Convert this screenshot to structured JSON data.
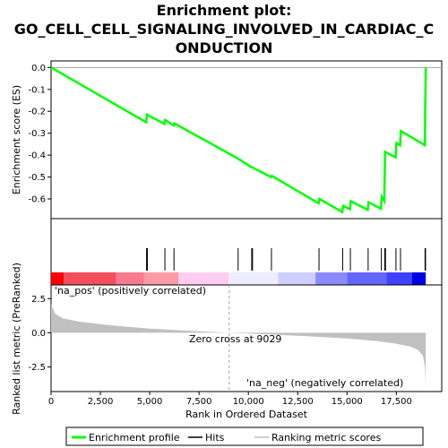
{
  "chart_data": {
    "type": "line",
    "title_lines": [
      "Enrichment plot:",
      "GO_CELL_CELL_SIGNALING_INVOLVED_IN_CARDIAC_C",
      "ONDUCTION"
    ],
    "panels": {
      "enrichment": {
        "ylabel": "Enrichment score (ES)",
        "ylim": [
          -0.69,
          0.03
        ],
        "yticks": [
          0.0,
          -0.1,
          -0.2,
          -0.3,
          -0.4,
          -0.5,
          -0.6
        ],
        "ytick_labels": [
          "0.0",
          "-0.1",
          "-0.2",
          "-0.3",
          "-0.4",
          "-0.5",
          "-0.6"
        ],
        "series": [
          {
            "name": "Enrichment profile",
            "color": "#00ff00",
            "x": [
              0,
              4820,
              4860,
              5750,
              5790,
              6210,
              6250,
              9460,
              10150,
              10190,
              11150,
              11190,
              13560,
              13600,
              14760,
              14800,
              15150,
              15190,
              16050,
              16090,
              16720,
              16760,
              16890,
              16930,
              17460,
              17500,
              17690,
              17730,
              18950,
              18960,
              18990
            ],
            "y": [
              0.0,
              -0.25,
              -0.215,
              -0.258,
              -0.24,
              -0.265,
              -0.255,
              -0.415,
              -0.455,
              -0.455,
              -0.5,
              -0.495,
              -0.62,
              -0.6,
              -0.66,
              -0.632,
              -0.647,
              -0.61,
              -0.65,
              -0.615,
              -0.645,
              -0.59,
              -0.61,
              -0.385,
              -0.41,
              -0.345,
              -0.355,
              -0.29,
              -0.355,
              -0.2,
              0.0
            ]
          }
        ]
      },
      "hits": {
        "name": "Hits",
        "positions": [
          4840,
          4880,
          5770,
          6230,
          9480,
          10170,
          10210,
          11170,
          13580,
          14780,
          15170,
          16070,
          16740,
          16910,
          16950,
          17480,
          17710,
          18955,
          18980
        ]
      },
      "ranked_metric": {
        "name": "Ranking metric scores",
        "ylabel": "Ranked list metric (PreRanked)",
        "ylim": [
          -4.3,
          3.5
        ],
        "yticks": [
          2.5,
          0.0,
          -2.5
        ],
        "ytick_labels": [
          "2.5",
          "0.0",
          "-2.5"
        ],
        "x": [
          0,
          200,
          600,
          1500,
          3000,
          5000,
          7000,
          9029,
          11000,
          13000,
          15000,
          16500,
          17500,
          18200,
          18600,
          18850,
          18950,
          18990
        ],
        "y": [
          2.1,
          1.4,
          1.05,
          0.8,
          0.55,
          0.3,
          0.15,
          0.0,
          -0.12,
          -0.25,
          -0.42,
          -0.6,
          -0.8,
          -1.0,
          -1.25,
          -1.7,
          -2.5,
          -3.9
        ],
        "pos_label": "'na_pos' (positively correlated)",
        "neg_label": "'na_neg' (negatively correlated)",
        "zero_cross_label": "Zero cross at 9029",
        "zero_cross": 9029
      }
    },
    "xlabel": "Rank in Ordered Dataset",
    "xlim": [
      0,
      19800
    ],
    "xticks": [
      0,
      2500,
      5000,
      7500,
      10000,
      12500,
      15000,
      17500
    ],
    "xtick_labels": [
      "0",
      "2,500",
      "5,000",
      "7,500",
      "10,000",
      "12,500",
      "15,000",
      "17,500"
    ],
    "n_genes": 18990,
    "legend": [
      {
        "label": "Enrichment profile",
        "color": "#00ff00"
      },
      {
        "label": "Hits",
        "color": "#000000"
      },
      {
        "label": "Ranking metric scores",
        "color": "#c0c0c0"
      }
    ],
    "colors": {
      "pos_label": "#ff0000",
      "neg_label": "#0000ff",
      "metric_fill": "#c0c0c0",
      "zero_line": "#a0a0a0"
    },
    "heat_bar": [
      {
        "from": 0,
        "to": 650,
        "color": "#ff0000"
      },
      {
        "from": 650,
        "to": 3300,
        "color": "#f24e5c"
      },
      {
        "from": 3300,
        "to": 4700,
        "color": "#f87a8e"
      },
      {
        "from": 4700,
        "to": 6450,
        "color": "#fc9aa6"
      },
      {
        "from": 6450,
        "to": 9000,
        "color": "#ffcdf1"
      },
      {
        "from": 9000,
        "to": 11500,
        "color": "#ededff"
      },
      {
        "from": 11500,
        "to": 13400,
        "color": "#cfcfff"
      },
      {
        "from": 13400,
        "to": 15000,
        "color": "#8b8bff"
      },
      {
        "from": 15000,
        "to": 17000,
        "color": "#6464ff"
      },
      {
        "from": 17000,
        "to": 18300,
        "color": "#4040ff"
      },
      {
        "from": 18300,
        "to": 18990,
        "color": "#0000e0"
      }
    ]
  }
}
